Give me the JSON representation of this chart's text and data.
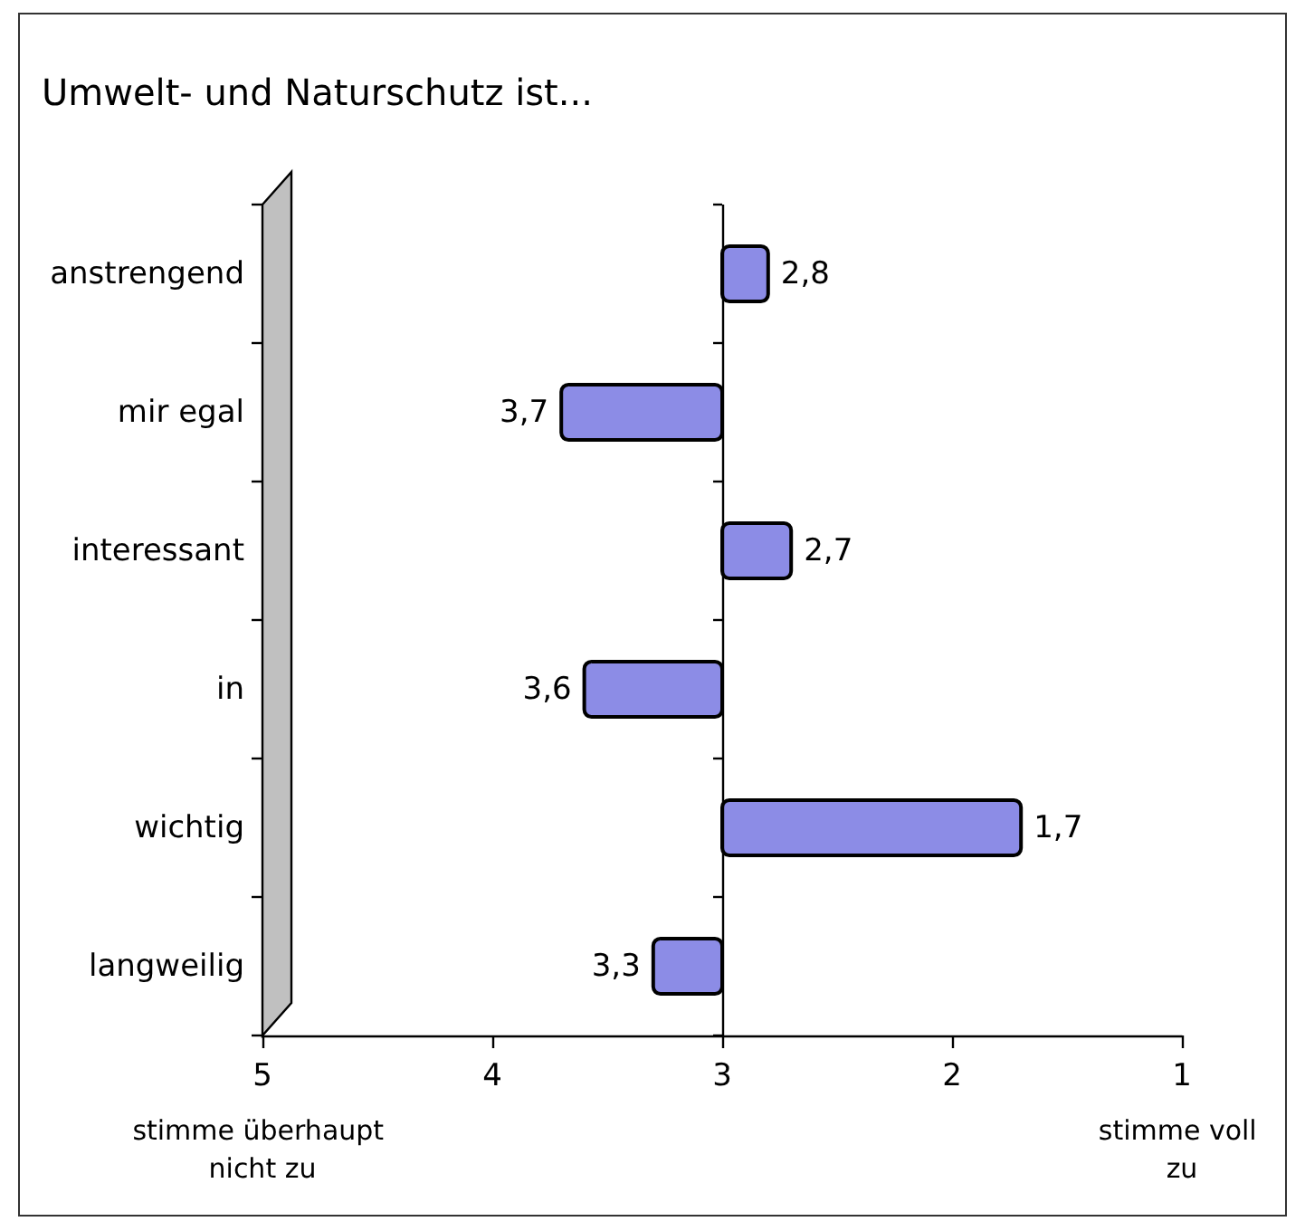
{
  "chart_data": {
    "type": "bar",
    "orientation": "horizontal",
    "title": "Umwelt- und Naturschutz ist...",
    "categories": [
      "anstrengend",
      "mir egal",
      "interessant",
      "in",
      "wichtig",
      "langweilig"
    ],
    "base": [
      3,
      3,
      3,
      3,
      3,
      3
    ],
    "values": [
      -0.2,
      0.7,
      -0.3,
      0.6,
      -1.3,
      0.3
    ],
    "value_labels": [
      "2,8",
      "3,7",
      "2,7",
      "3,6",
      "1,7",
      "3,3"
    ],
    "color": "#8c8ce6",
    "xlim": [
      5,
      1
    ],
    "xticks": [
      5,
      4,
      3,
      2,
      1
    ],
    "grid": false,
    "ref_lines": [
      {
        "axis": "x",
        "value": 3
      }
    ],
    "annotations": [
      "stimme überhaupt nicht zu",
      "stimme voll zu"
    ]
  }
}
